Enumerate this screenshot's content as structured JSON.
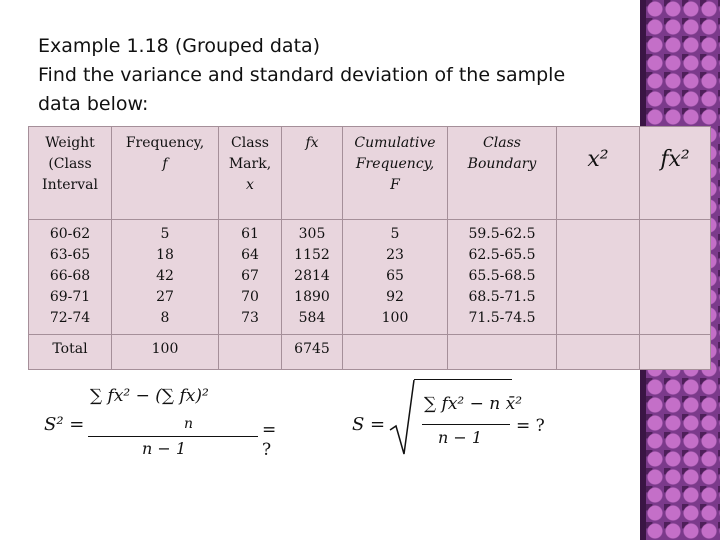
{
  "slide": {
    "title_line1": "Example 1.18 (Grouped data)",
    "title_line2": "Find the variance and standard deviation of the sample",
    "title_line3": "data below:"
  },
  "table": {
    "headers": {
      "weight": [
        "Weight",
        "(Class",
        "Interval"
      ],
      "frequency": [
        "Frequency,",
        "f"
      ],
      "class_mark": [
        "Class",
        "Mark,",
        "x"
      ],
      "fx": "fx",
      "cumulative": [
        "Cumulative",
        "Frequency,",
        "F"
      ],
      "boundary": [
        "Class",
        "Boundary"
      ],
      "x2": "x²",
      "fx2": "fx²"
    },
    "intervals": [
      "60-62",
      "63-65",
      "66-68",
      "69-71",
      "72-74"
    ],
    "frequencies": [
      "5",
      "18",
      "42",
      "27",
      "8"
    ],
    "class_marks": [
      "61",
      "64",
      "67",
      "70",
      "73"
    ],
    "fx_values": [
      "305",
      "1152",
      "2814",
      "1890",
      "584"
    ],
    "cumulative_values": [
      "5",
      "23",
      "65",
      "92",
      "100"
    ],
    "boundaries": [
      "59.5-62.5",
      "62.5-65.5",
      "65.5-68.5",
      "68.5-71.5",
      "71.5-74.5"
    ],
    "total_label": "Total",
    "total_frequency": "100",
    "total_fx": "6745"
  },
  "formulas": {
    "variance_lhs": "S² =",
    "variance_num": "∑ fx² − (∑ fx)²",
    "variance_inner_den": "n",
    "variance_den": "n − 1",
    "variance_rhs": "= ?",
    "std_lhs": "S =",
    "std_num": "∑ fx² − n x̄²",
    "std_den": "n − 1",
    "std_rhs": "= ?"
  }
}
